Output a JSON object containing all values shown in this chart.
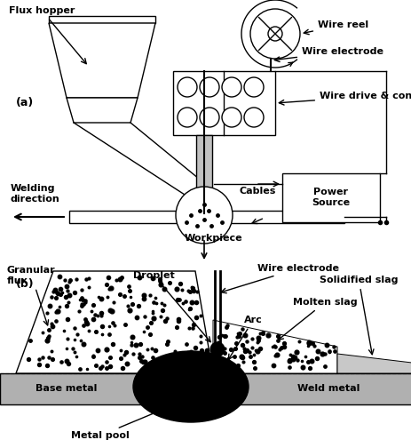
{
  "bg_color": "#ffffff",
  "line_color": "#000000",
  "label_a": "(a)",
  "label_b": "(b)",
  "flux_hopper": "Flux hopper",
  "wire_reel": "Wire reel",
  "wire_electrode_top": "Wire electrode",
  "wire_drive": "Wire drive & control",
  "welding_direction": "Welding\ndirection",
  "cables": "Cables",
  "power_source": "Power\nSource",
  "workpiece": "Workpiece",
  "granular_flux": "Granular\nflux",
  "droplet": "Droplet",
  "wire_electrode_bot": "Wire electrode",
  "arc": "Arc",
  "molten_slag": "Molten slag",
  "solidified_slag": "Solidified slag",
  "base_metal": "Base metal",
  "weld_metal": "Weld metal",
  "metal_pool": "Metal pool",
  "figsize": [
    4.64,
    5.04
  ],
  "dpi": 100
}
